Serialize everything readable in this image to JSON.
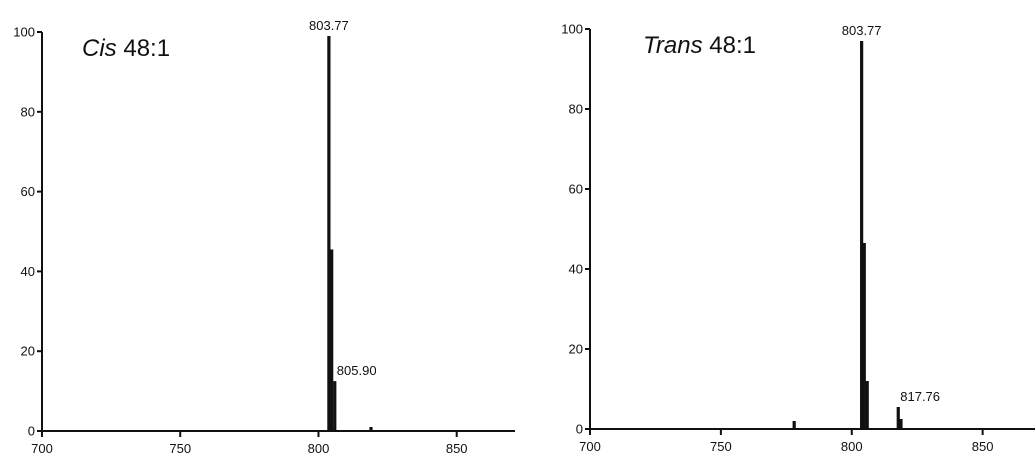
{
  "chart_data": [
    {
      "type": "bar",
      "title_italic": "Cis",
      "title_rest": " 48:1",
      "xlim": [
        700,
        870
      ],
      "ylim": [
        0,
        100
      ],
      "xticks": [
        700,
        750,
        800,
        850
      ],
      "yticks": [
        0,
        20,
        40,
        60,
        80,
        100
      ],
      "xlabel": "",
      "ylabel": "",
      "peaks": [
        {
          "mz": 803.77,
          "intensity": 99
        },
        {
          "mz": 804.78,
          "intensity": 45.5
        },
        {
          "mz": 805.9,
          "intensity": 12.5
        },
        {
          "mz": 819.0,
          "intensity": 1
        }
      ],
      "annotations": [
        {
          "text": "803.77",
          "mz": 803.77,
          "intensity": 99
        },
        {
          "text": "805.90",
          "mz": 805.9,
          "intensity": 12.5
        }
      ]
    },
    {
      "type": "bar",
      "title_italic": "Trans",
      "title_rest": " 48:1",
      "xlim": [
        700,
        870
      ],
      "ylim": [
        0,
        100
      ],
      "xticks": [
        700,
        750,
        800,
        850
      ],
      "yticks": [
        0,
        20,
        40,
        60,
        80,
        100
      ],
      "xlabel": "",
      "ylabel": "",
      "peaks": [
        {
          "mz": 778.0,
          "intensity": 2
        },
        {
          "mz": 803.77,
          "intensity": 97
        },
        {
          "mz": 804.78,
          "intensity": 46.5
        },
        {
          "mz": 805.9,
          "intensity": 12
        },
        {
          "mz": 817.76,
          "intensity": 5.5
        },
        {
          "mz": 818.8,
          "intensity": 2.5
        }
      ],
      "annotations": [
        {
          "text": "803.77",
          "mz": 803.77,
          "intensity": 97
        },
        {
          "text": "817.76",
          "mz": 817.76,
          "intensity": 5.5
        }
      ]
    }
  ]
}
